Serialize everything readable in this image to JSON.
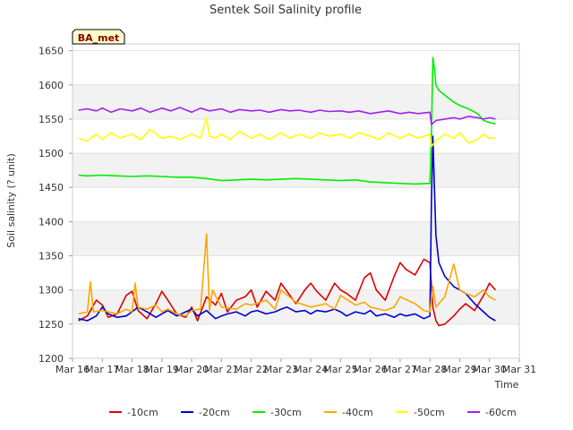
{
  "chart_data": {
    "type": "line",
    "title": "Sentek Soil Salinity profile",
    "xlabel": "Time",
    "ylabel": "Soil salinity (? unit)",
    "site_label": "BA_met",
    "xlim": [
      16,
      31
    ],
    "ylim": [
      1200,
      1660
    ],
    "x_ticks": [
      {
        "value": 16,
        "label": "Mar 16"
      },
      {
        "value": 17,
        "label": "Mar 17"
      },
      {
        "value": 18,
        "label": "Mar 18"
      },
      {
        "value": 19,
        "label": "Mar 19"
      },
      {
        "value": 20,
        "label": "Mar 20"
      },
      {
        "value": 21,
        "label": "Mar 21"
      },
      {
        "value": 22,
        "label": "Mar 22"
      },
      {
        "value": 23,
        "label": "Mar 23"
      },
      {
        "value": 24,
        "label": "Mar 24"
      },
      {
        "value": 25,
        "label": "Mar 25"
      },
      {
        "value": 26,
        "label": "Mar 26"
      },
      {
        "value": 27,
        "label": "Mar 27"
      },
      {
        "value": 28,
        "label": "Mar 28"
      },
      {
        "value": 29,
        "label": "Mar 29"
      },
      {
        "value": 30,
        "label": "Mar 30"
      },
      {
        "value": 31,
        "label": "Mar 31"
      }
    ],
    "y_ticks": [
      1200,
      1250,
      1300,
      1350,
      1400,
      1450,
      1500,
      1550,
      1600,
      1650
    ],
    "grid": "horizontal bands",
    "legend_position": "bottom",
    "series": [
      {
        "name": "-10cm",
        "color": "#dd0000",
        "x": [
          16.2,
          16.5,
          16.8,
          17.0,
          17.2,
          17.5,
          17.8,
          18.0,
          18.2,
          18.5,
          18.8,
          19.0,
          19.2,
          19.5,
          19.8,
          20.0,
          20.2,
          20.5,
          20.8,
          21.0,
          21.2,
          21.5,
          21.8,
          22.0,
          22.2,
          22.5,
          22.8,
          23.0,
          23.2,
          23.5,
          23.8,
          24.0,
          24.2,
          24.5,
          24.8,
          25.0,
          25.2,
          25.5,
          25.8,
          26.0,
          26.2,
          26.5,
          26.8,
          27.0,
          27.2,
          27.5,
          27.8,
          28.0,
          28.1,
          28.2,
          28.3,
          28.5,
          28.8,
          29.0,
          29.2,
          29.5,
          29.8,
          30.0,
          30.2
        ],
        "y": [
          1255,
          1262,
          1285,
          1278,
          1260,
          1265,
          1292,
          1298,
          1270,
          1258,
          1280,
          1298,
          1285,
          1265,
          1260,
          1275,
          1255,
          1290,
          1278,
          1295,
          1268,
          1285,
          1290,
          1300,
          1275,
          1298,
          1285,
          1310,
          1298,
          1280,
          1300,
          1310,
          1298,
          1285,
          1310,
          1300,
          1295,
          1285,
          1318,
          1325,
          1300,
          1285,
          1320,
          1340,
          1330,
          1322,
          1345,
          1340,
          1275,
          1255,
          1248,
          1250,
          1262,
          1272,
          1280,
          1270,
          1292,
          1310,
          1300
        ]
      },
      {
        "name": "-20cm",
        "color": "#0000cc",
        "x": [
          16.2,
          16.5,
          16.8,
          17.0,
          17.2,
          17.5,
          17.8,
          18.0,
          18.2,
          18.5,
          18.8,
          19.0,
          19.2,
          19.5,
          19.8,
          20.0,
          20.2,
          20.5,
          20.8,
          21.0,
          21.2,
          21.5,
          21.8,
          22.0,
          22.2,
          22.5,
          22.8,
          23.0,
          23.2,
          23.5,
          23.8,
          24.0,
          24.2,
          24.5,
          24.8,
          25.0,
          25.2,
          25.5,
          25.8,
          26.0,
          26.2,
          26.5,
          26.8,
          27.0,
          27.2,
          27.5,
          27.8,
          28.0,
          28.05,
          28.1,
          28.15,
          28.2,
          28.3,
          28.5,
          28.8,
          29.0,
          29.2,
          29.5,
          29.8,
          30.0,
          30.2
        ],
        "y": [
          1258,
          1255,
          1262,
          1275,
          1265,
          1260,
          1262,
          1268,
          1275,
          1268,
          1260,
          1265,
          1270,
          1262,
          1268,
          1272,
          1262,
          1270,
          1258,
          1262,
          1265,
          1268,
          1262,
          1268,
          1270,
          1265,
          1268,
          1272,
          1275,
          1268,
          1270,
          1265,
          1270,
          1268,
          1272,
          1268,
          1262,
          1268,
          1265,
          1270,
          1262,
          1265,
          1260,
          1265,
          1262,
          1265,
          1258,
          1262,
          1430,
          1525,
          1450,
          1380,
          1340,
          1320,
          1305,
          1300,
          1295,
          1280,
          1268,
          1260,
          1255
        ]
      },
      {
        "name": "-30cm",
        "color": "#00ee00",
        "x": [
          16.2,
          16.5,
          17.0,
          17.5,
          18.0,
          18.5,
          19.0,
          19.5,
          20.0,
          20.5,
          21.0,
          21.5,
          22.0,
          22.5,
          23.0,
          23.5,
          24.0,
          24.5,
          25.0,
          25.5,
          26.0,
          26.5,
          27.0,
          27.5,
          28.0,
          28.05,
          28.1,
          28.15,
          28.2,
          28.3,
          28.5,
          28.8,
          29.0,
          29.3,
          29.6,
          29.8,
          30.0,
          30.2
        ],
        "y": [
          1468,
          1467,
          1468,
          1467,
          1466,
          1467,
          1466,
          1465,
          1465,
          1463,
          1460,
          1461,
          1462,
          1461,
          1462,
          1463,
          1462,
          1461,
          1460,
          1461,
          1458,
          1457,
          1456,
          1455,
          1456,
          1530,
          1640,
          1625,
          1600,
          1592,
          1585,
          1575,
          1570,
          1565,
          1558,
          1548,
          1545,
          1543
        ]
      },
      {
        "name": "-40cm",
        "color": "#ffa500",
        "x": [
          16.2,
          16.5,
          16.6,
          16.7,
          17.0,
          17.5,
          17.8,
          18.0,
          18.1,
          18.2,
          18.5,
          18.8,
          19.0,
          19.2,
          19.5,
          19.8,
          20.0,
          20.3,
          20.5,
          20.6,
          20.7,
          21.0,
          21.5,
          21.8,
          22.0,
          22.5,
          22.8,
          23.0,
          23.5,
          23.8,
          24.0,
          24.5,
          24.8,
          25.0,
          25.5,
          25.8,
          26.0,
          26.5,
          26.8,
          27.0,
          27.5,
          27.8,
          28.0,
          28.1,
          28.2,
          28.5,
          28.8,
          29.0,
          29.2,
          29.5,
          29.8,
          30.0,
          30.2
        ],
        "y": [
          1265,
          1268,
          1312,
          1268,
          1270,
          1265,
          1272,
          1268,
          1310,
          1275,
          1272,
          1278,
          1268,
          1272,
          1265,
          1262,
          1270,
          1272,
          1382,
          1270,
          1300,
          1275,
          1272,
          1280,
          1278,
          1285,
          1272,
          1300,
          1282,
          1278,
          1275,
          1280,
          1272,
          1292,
          1278,
          1282,
          1275,
          1270,
          1275,
          1290,
          1280,
          1270,
          1268,
          1305,
          1275,
          1290,
          1338,
          1300,
          1295,
          1290,
          1300,
          1290,
          1285
        ]
      },
      {
        "name": "-50cm",
        "color": "#ffff00",
        "x": [
          16.2,
          16.5,
          16.8,
          17.0,
          17.3,
          17.6,
          18.0,
          18.3,
          18.6,
          19.0,
          19.3,
          19.6,
          20.0,
          20.3,
          20.5,
          20.6,
          20.8,
          21.0,
          21.3,
          21.6,
          22.0,
          22.3,
          22.6,
          23.0,
          23.3,
          23.6,
          24.0,
          24.3,
          24.6,
          25.0,
          25.3,
          25.6,
          26.0,
          26.3,
          26.6,
          27.0,
          27.3,
          27.6,
          28.0,
          28.05,
          28.2,
          28.5,
          28.8,
          29.0,
          29.3,
          29.6,
          29.8,
          30.0,
          30.2
        ],
        "y": [
          1522,
          1518,
          1528,
          1520,
          1530,
          1522,
          1528,
          1520,
          1535,
          1522,
          1525,
          1520,
          1528,
          1522,
          1552,
          1525,
          1522,
          1528,
          1520,
          1532,
          1522,
          1528,
          1520,
          1530,
          1522,
          1528,
          1522,
          1530,
          1525,
          1528,
          1522,
          1530,
          1525,
          1520,
          1530,
          1522,
          1528,
          1522,
          1528,
          1510,
          1518,
          1528,
          1522,
          1530,
          1515,
          1520,
          1528,
          1522,
          1522
        ]
      },
      {
        "name": "-60cm",
        "color": "#a020f0",
        "x": [
          16.2,
          16.5,
          16.8,
          17.0,
          17.3,
          17.6,
          18.0,
          18.3,
          18.6,
          19.0,
          19.3,
          19.6,
          20.0,
          20.3,
          20.6,
          21.0,
          21.3,
          21.6,
          22.0,
          22.3,
          22.6,
          23.0,
          23.3,
          23.6,
          24.0,
          24.3,
          24.6,
          25.0,
          25.3,
          25.6,
          26.0,
          26.3,
          26.6,
          27.0,
          27.3,
          27.6,
          28.0,
          28.05,
          28.2,
          28.5,
          28.8,
          29.0,
          29.3,
          29.6,
          29.8,
          30.0,
          30.2
        ],
        "y": [
          1563,
          1565,
          1562,
          1566,
          1560,
          1565,
          1562,
          1566,
          1560,
          1566,
          1562,
          1567,
          1560,
          1566,
          1562,
          1565,
          1560,
          1564,
          1562,
          1563,
          1560,
          1564,
          1562,
          1563,
          1560,
          1563,
          1561,
          1562,
          1560,
          1562,
          1558,
          1560,
          1562,
          1558,
          1560,
          1558,
          1560,
          1542,
          1548,
          1550,
          1552,
          1550,
          1554,
          1552,
          1550,
          1552,
          1550
        ]
      }
    ]
  }
}
